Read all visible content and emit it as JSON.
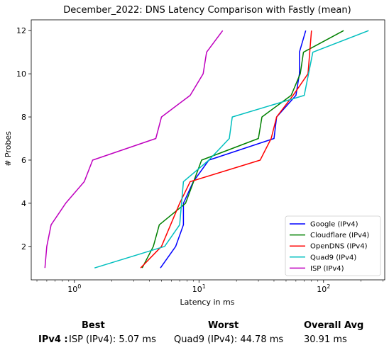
{
  "chart_data": {
    "type": "line",
    "title": "December_2022: DNS Latency Comparison with Fastly (mean)",
    "xlabel": "Latency in ms",
    "ylabel": "# Probes",
    "xscale": "log",
    "xlim": [
      0.45,
      310
    ],
    "ylim": [
      0.45,
      12.5
    ],
    "x_ticks": [
      {
        "value": 1,
        "label": "10^0"
      },
      {
        "value": 10,
        "label": "10^1"
      },
      {
        "value": 100,
        "label": "10^2"
      }
    ],
    "y_ticks": [
      2,
      4,
      6,
      8,
      10,
      12
    ],
    "grid": false,
    "legend_position": "lower right",
    "series": [
      {
        "name": "Google (IPv4)",
        "color": "#0000ff",
        "x": [
          4.9,
          6.5,
          7.5,
          7.5,
          9.0,
          12.0,
          40.0,
          42.0,
          60.0,
          64.0,
          64.0,
          72.0
        ],
        "y": [
          1,
          2,
          3,
          4,
          5,
          6,
          7,
          8,
          9,
          10,
          11,
          12
        ]
      },
      {
        "name": "Cloudflare (IPv4)",
        "color": "#008000",
        "x": [
          3.5,
          4.3,
          4.8,
          7.8,
          10.5,
          30.0,
          32.0,
          55.0,
          65.0,
          69.0,
          69.0,
          145.0
        ],
        "y": [
          1,
          2,
          3,
          4,
          6,
          7,
          8,
          9,
          10,
          11,
          11,
          12
        ]
      },
      {
        "name": "OpenDNS (IPv4)",
        "color": "#ff0000",
        "x": [
          3.4,
          5.0,
          7.0,
          8.5,
          31.0,
          38.0,
          42.0,
          57.0,
          75.0,
          80.0
        ],
        "y": [
          1,
          2,
          4,
          5,
          6,
          7,
          8,
          9,
          10,
          12
        ]
      },
      {
        "name": "Quad9 (IPv4)",
        "color": "#00bfbf",
        "x": [
          1.45,
          5.3,
          7.0,
          7.5,
          12.0,
          17.5,
          18.5,
          70.0,
          82.0,
          230.0
        ],
        "y": [
          1,
          2,
          3,
          5,
          6,
          7,
          8,
          9,
          11,
          12
        ]
      },
      {
        "name": "ISP (IPv4)",
        "color": "#bf00bf",
        "x": [
          0.58,
          0.6,
          0.65,
          0.85,
          1.2,
          1.4,
          4.5,
          5.0,
          8.5,
          10.8,
          11.5,
          15.5
        ],
        "y": [
          1,
          2,
          3,
          4,
          5,
          6,
          7,
          8,
          9,
          10,
          11,
          12
        ]
      }
    ]
  },
  "summary": {
    "headers": {
      "best": "Best",
      "worst": "Worst",
      "overall": "Overall Avg"
    },
    "row_label": "IPv4 :",
    "best": "ISP (IPv4): 5.07 ms",
    "worst": "Quad9 (IPv4): 44.78 ms",
    "overall": "30.91 ms"
  }
}
